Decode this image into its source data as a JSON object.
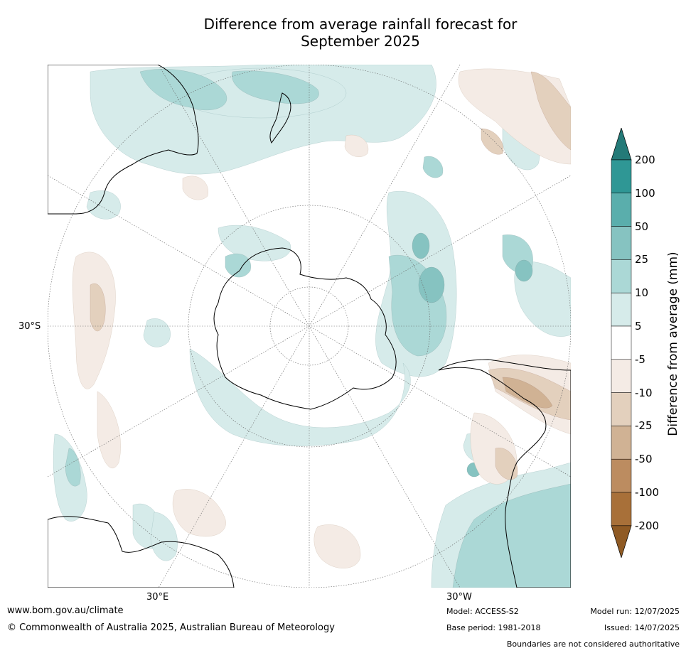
{
  "title_line1": "Difference from average rainfall forecast for",
  "title_line2": "September 2025",
  "axis_labels": {
    "lat_30s": "30°S",
    "lon_30e": "30°E",
    "lon_30w": "30°W"
  },
  "colorbar": {
    "title": "Difference from average (mm)",
    "ticks": [
      "200",
      "100",
      "50",
      "25",
      "10",
      "5",
      "-5",
      "-10",
      "-25",
      "-50",
      "-100",
      "-200"
    ],
    "colors": [
      "#247a78",
      "#2f9795",
      "#5aaeac",
      "#86c3c1",
      "#abd8d6",
      "#d6ebea",
      "#ffffff",
      "#f4ebe5",
      "#e3d0bd",
      "#d0b294",
      "#bc8c60",
      "#a87039",
      "#8f5a24"
    ]
  },
  "footer": {
    "url": "www.bom.gov.au/climate",
    "copyright": "© Commonwealth of Australia 2025, Australian Bureau of Meteorology",
    "model": "Model: ACCESS-S2",
    "base_period": "Base period: 1981-2018",
    "model_run": "Model run: 12/07/2025",
    "issued": "Issued: 14/07/2025",
    "disclaimer": "Boundaries are not considered authoritative"
  }
}
